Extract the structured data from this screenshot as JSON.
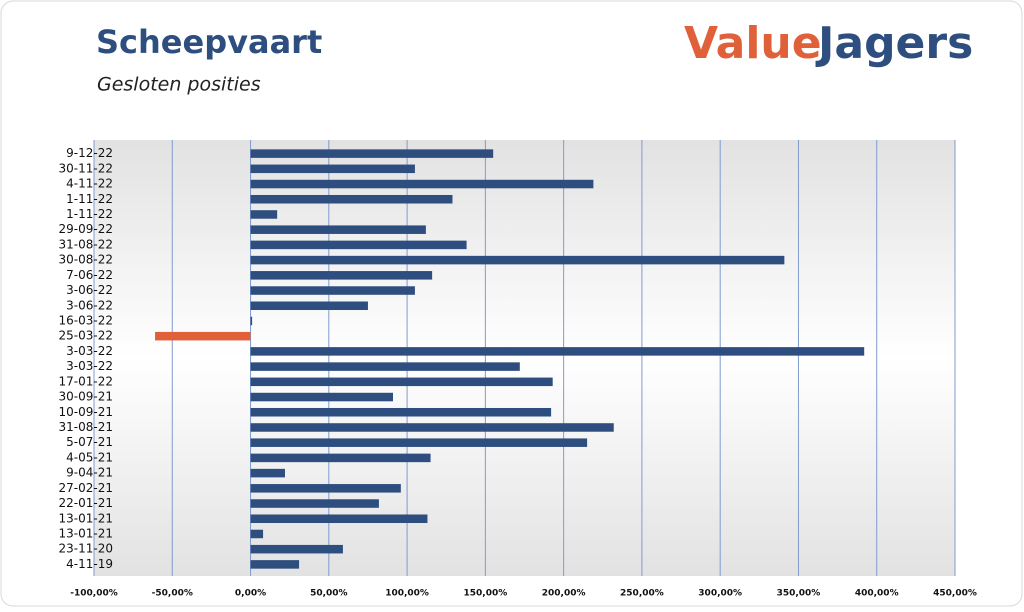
{
  "chart_data": {
    "type": "hbar",
    "title": "Scheepvaart",
    "subtitle": "Gesloten posities",
    "logo": [
      "Value",
      "Jagers"
    ],
    "categories": [
      "9-12-22",
      "30-11-22",
      "4-11-22",
      "1-11-22",
      "1-11-22",
      "29-09-22",
      "31-08-22",
      "30-08-22",
      "7-06-22",
      "3-06-22",
      "3-06-22",
      "16-03-22",
      "25-03-22",
      "3-03-22",
      "3-03-22",
      "17-01-22",
      "30-09-21",
      "10-09-21",
      "31-08-21",
      "5-07-21",
      "4-05-21",
      "9-04-21",
      "27-02-21",
      "22-01-21",
      "13-01-21",
      "13-01-21",
      "23-11-20",
      "4-11-19"
    ],
    "values": [
      155,
      105,
      219,
      129,
      17,
      112,
      138,
      341,
      116,
      105,
      75,
      1,
      -61,
      392,
      172,
      193,
      91,
      192,
      232,
      215,
      115,
      22,
      96,
      82,
      113,
      8,
      59,
      31
    ],
    "color": "#2d4e7e",
    "negative_color": "#e0603a",
    "xlim": [
      -100,
      450
    ],
    "xticks": [
      {
        "value": -100,
        "label": "-100,00%"
      },
      {
        "value": -50,
        "label": "-50,00%"
      },
      {
        "value": 0,
        "label": "0,00%"
      },
      {
        "value": 50,
        "label": "50,00%"
      },
      {
        "value": 100,
        "label": "100,00%"
      },
      {
        "value": 150,
        "label": "150,00%"
      },
      {
        "value": 200,
        "label": "200,00%"
      },
      {
        "value": 250,
        "label": "250,00%"
      },
      {
        "value": 300,
        "label": "300,00%"
      },
      {
        "value": 350,
        "label": "350,00%"
      },
      {
        "value": 400,
        "label": "400,00%"
      },
      {
        "value": 450,
        "label": "450,00%"
      }
    ],
    "grid": true
  }
}
